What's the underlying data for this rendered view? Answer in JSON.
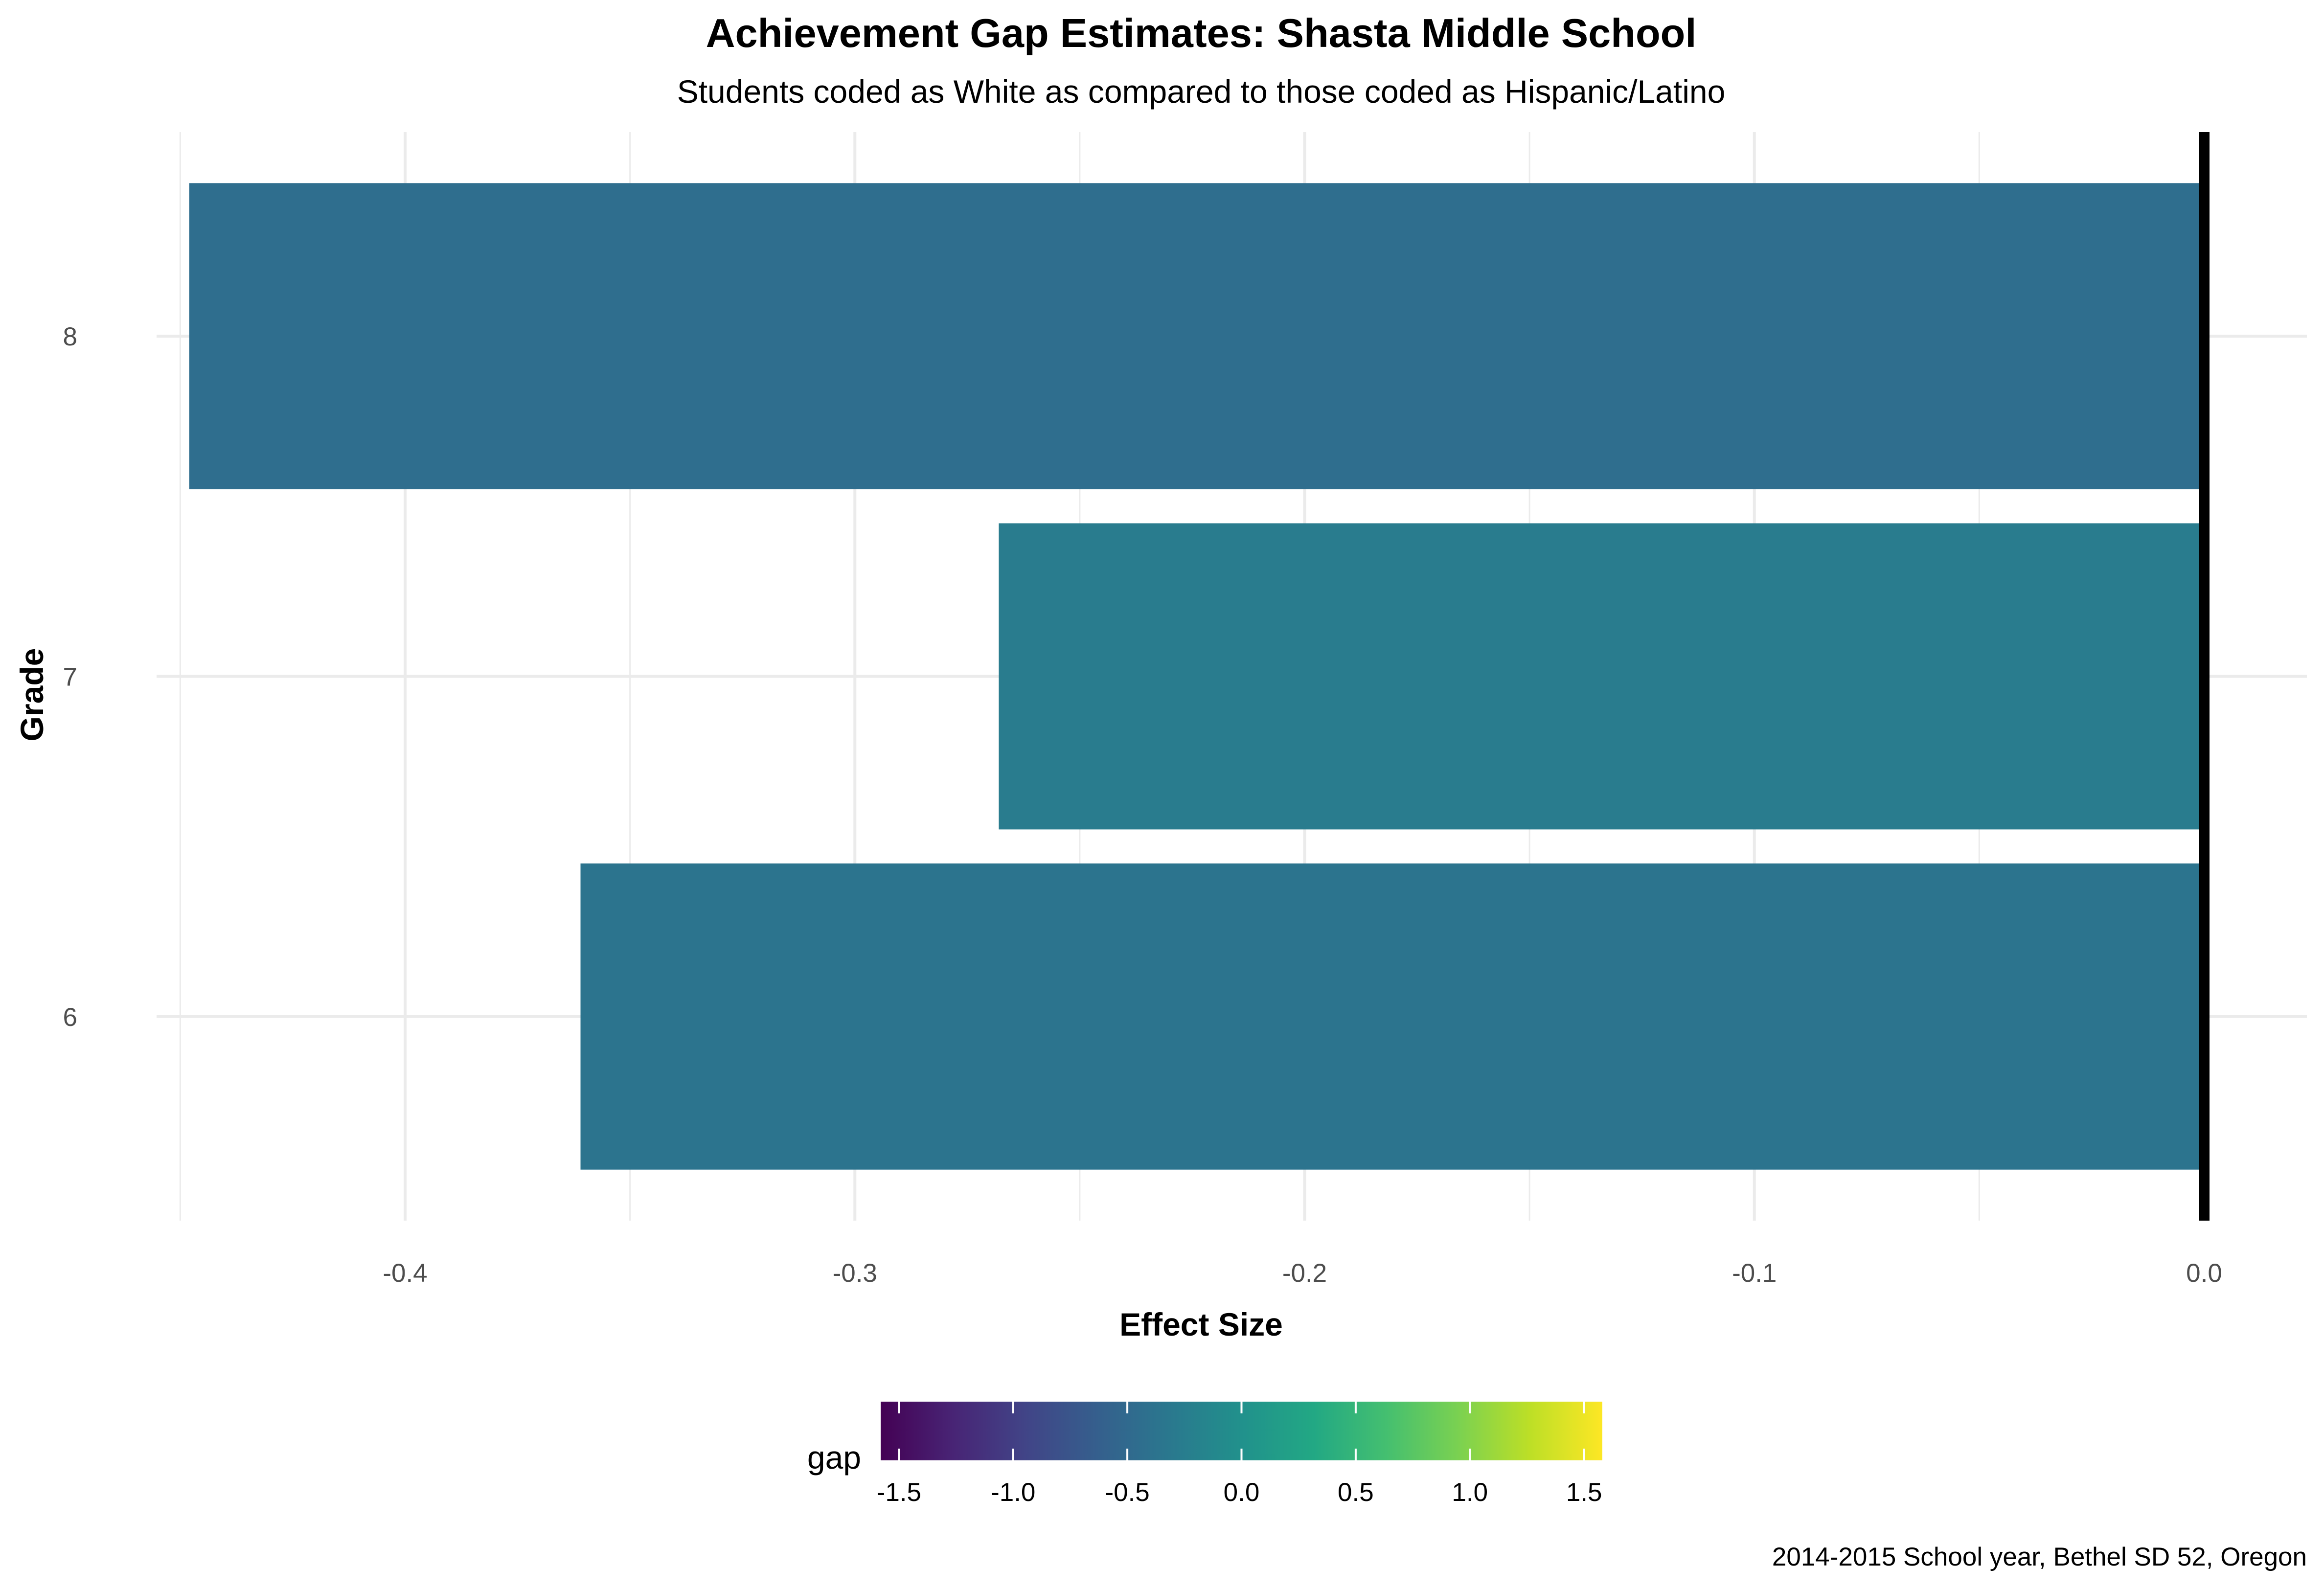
{
  "chart_data": {
    "type": "bar",
    "orientation": "horizontal",
    "title": "Achievement Gap Estimates: Shasta Middle School",
    "subtitle": "Students coded as White as compared to those coded as Hispanic/Latino",
    "xlabel": "Effect Size",
    "ylabel": "Grade",
    "caption": "2014-2015 School year, Bethel SD 52, Oregon",
    "categories": [
      "6",
      "7",
      "8"
    ],
    "values": [
      -0.361,
      -0.268,
      -0.448
    ],
    "xlim": [
      -0.452,
      0.0
    ],
    "x_ticks": [
      -0.4,
      -0.3,
      -0.2,
      -0.1,
      0.0
    ],
    "x_tick_labels": [
      "-0.4",
      "-0.3",
      "-0.2",
      "-0.1",
      "0.0"
    ],
    "reference_line_x": 0.0,
    "grid": true,
    "legend": {
      "title": "gap",
      "type": "colorbar",
      "position": "bottom",
      "range": [
        -1.58,
        1.58
      ],
      "ticks": [
        -1.5,
        -1.0,
        -0.5,
        0.0,
        0.5,
        1.0,
        1.5
      ],
      "tick_labels": [
        "-1.5",
        "-1.0",
        "-0.5",
        "0.0",
        "0.5",
        "1.0",
        "1.5"
      ],
      "palette": "viridis"
    },
    "colors": {
      "grid": "#ebebeb",
      "reference_line": "#000000"
    }
  }
}
